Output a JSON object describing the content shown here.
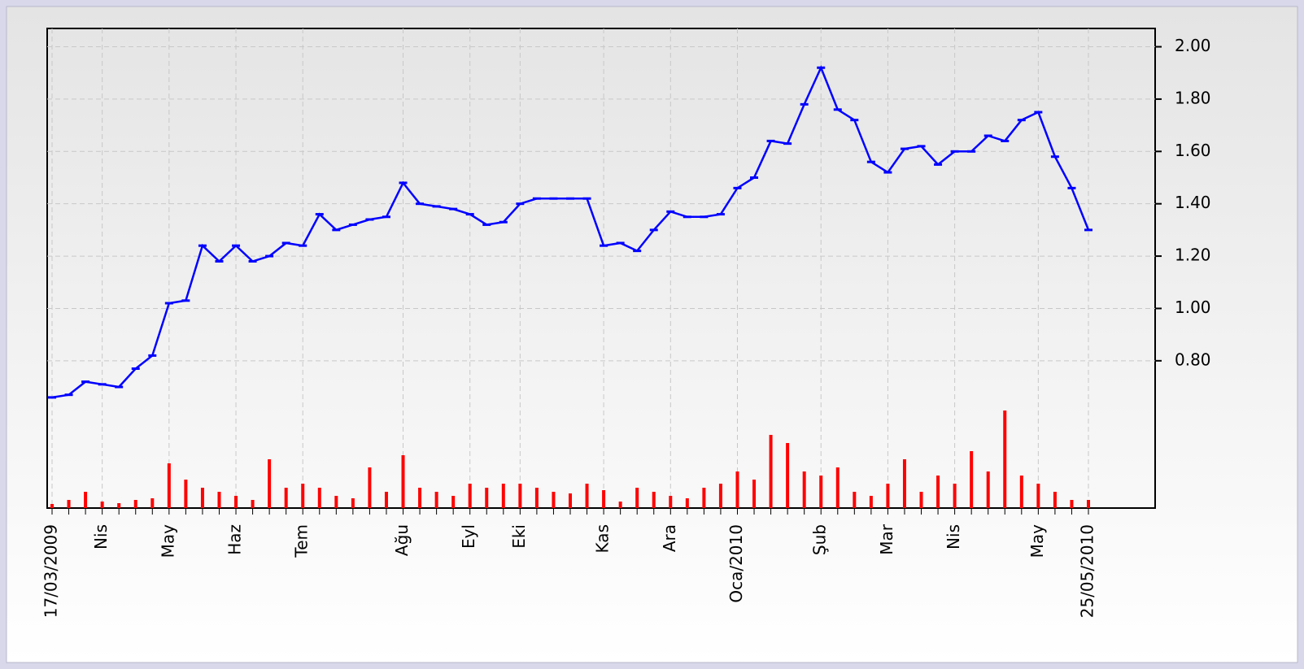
{
  "chart_data": {
    "type": "line",
    "categories": [
      "17/03/2009",
      null,
      null,
      "Nis",
      null,
      null,
      null,
      "May",
      null,
      null,
      null,
      "Haz",
      null,
      null,
      null,
      "Tem",
      null,
      null,
      null,
      null,
      null,
      "Ağu",
      null,
      null,
      null,
      "Eyl",
      null,
      null,
      "Eki",
      null,
      null,
      null,
      null,
      "Kas",
      null,
      null,
      null,
      "Ara",
      null,
      null,
      null,
      "Oca/2010",
      null,
      null,
      null,
      null,
      "Şub",
      null,
      null,
      null,
      "Mar",
      null,
      null,
      null,
      "Nis",
      null,
      null,
      null,
      null,
      "May",
      null,
      null,
      "25/05/2010"
    ],
    "series": [
      {
        "color": "#0000ff",
        "values": [
          0.66,
          0.67,
          0.72,
          0.71,
          0.7,
          0.77,
          0.82,
          1.02,
          1.03,
          1.24,
          1.18,
          1.24,
          1.18,
          1.2,
          1.25,
          1.24,
          1.36,
          1.3,
          1.32,
          1.34,
          1.35,
          1.48,
          1.4,
          1.39,
          1.38,
          1.36,
          1.32,
          1.33,
          1.4,
          1.42,
          1.42,
          1.42,
          1.42,
          1.24,
          1.25,
          1.22,
          1.3,
          1.37,
          1.35,
          1.35,
          1.36,
          1.46,
          1.5,
          1.64,
          1.63,
          1.78,
          1.92,
          1.76,
          1.72,
          1.56,
          1.52,
          1.61,
          1.62,
          1.55,
          1.6,
          1.6,
          1.66,
          1.64,
          1.72,
          1.75,
          1.58,
          1.46,
          1.3
        ]
      },
      {
        "type": "bar",
        "axis": "y2",
        "color": "#ff0000",
        "values": [
          5,
          10,
          20,
          8,
          6,
          10,
          12,
          55,
          35,
          25,
          20,
          15,
          10,
          60,
          25,
          30,
          25,
          15,
          12,
          50,
          20,
          65,
          25,
          20,
          15,
          30,
          25,
          30,
          30,
          25,
          20,
          18,
          30,
          22,
          8,
          25,
          20,
          15,
          12,
          25,
          30,
          45,
          35,
          90,
          80,
          45,
          40,
          50,
          20,
          15,
          30,
          60,
          20,
          40,
          30,
          70,
          45,
          120,
          40,
          30,
          20,
          10,
          10
        ]
      }
    ],
    "ylim": [
      0.61,
      2.07
    ],
    "yticks": [
      {
        "value": 0.8,
        "label": "0.80"
      },
      {
        "value": 1.0,
        "label": "1.00"
      },
      {
        "value": 1.2,
        "label": "1.20"
      },
      {
        "value": 1.4,
        "label": "1.40"
      },
      {
        "value": 1.6,
        "label": "1.60"
      },
      {
        "value": 1.8,
        "label": "1.80"
      },
      {
        "value": 2.0,
        "label": "2.00"
      }
    ],
    "y2lim": [
      0,
      120
    ],
    "grid": true
  }
}
